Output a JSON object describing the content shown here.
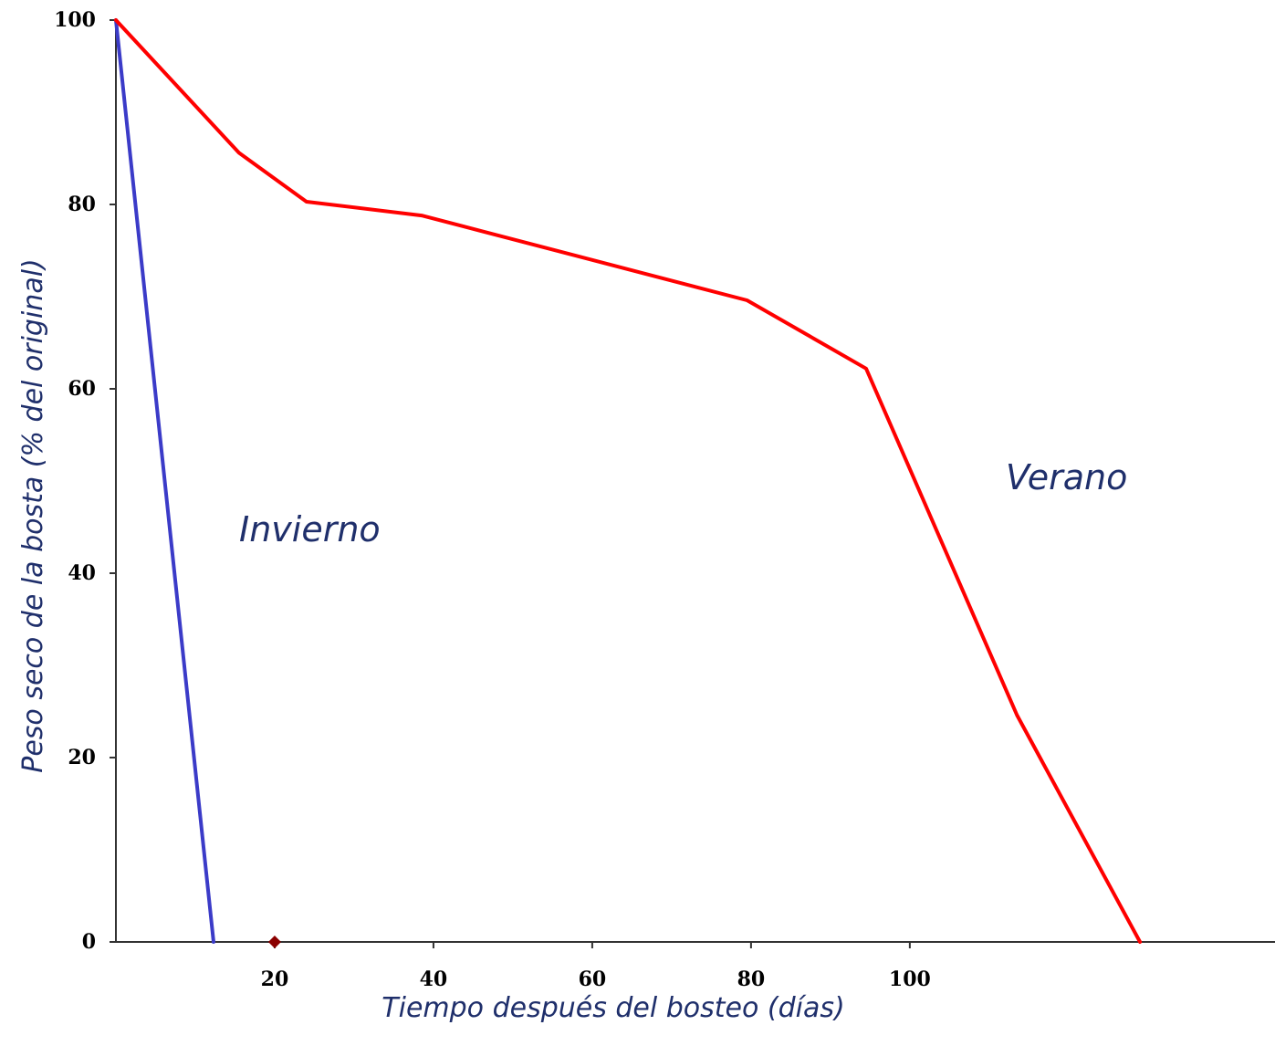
{
  "chart_data": {
    "type": "line",
    "title": "",
    "xlabel": "Tiempo después del bosteo (días)",
    "ylabel": "Peso seco de la bosta (% del original)",
    "xlim": [
      0,
      146
    ],
    "ylim": [
      0,
      100
    ],
    "xticks": [
      20,
      40,
      60,
      80,
      100
    ],
    "yticks": [
      0,
      20,
      40,
      60,
      80,
      100
    ],
    "grid": false,
    "legend": "none",
    "series": [
      {
        "name": "Invierno",
        "color": "#3b3bc8",
        "points": [
          [
            0,
            100
          ],
          [
            12.3,
            0
          ]
        ]
      },
      {
        "name": "Verano",
        "color": "#ff0000",
        "points": [
          [
            0,
            100
          ],
          [
            15.5,
            85.6
          ],
          [
            24,
            80.3
          ],
          [
            38.5,
            78.8
          ],
          [
            79.5,
            69.6
          ],
          [
            94.5,
            62.2
          ],
          [
            113.5,
            24.6
          ],
          [
            129,
            0
          ]
        ]
      }
    ],
    "markers": [
      {
        "x": 20,
        "y": 0,
        "color": "#8b0000",
        "shape": "diamond"
      }
    ]
  }
}
